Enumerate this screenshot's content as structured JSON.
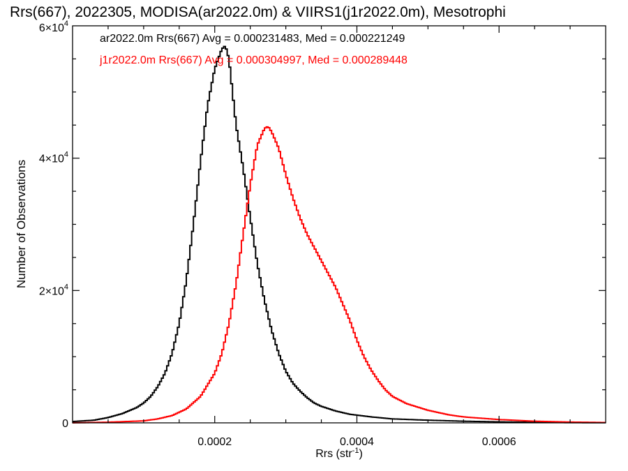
{
  "chart_data": {
    "type": "line",
    "title": "Rrs(667), 2022305, MODISA(ar2022.0m) & VIIRS1(j1r2022.0m), Mesotrophi",
    "xlabel_main": "Rrs (str",
    "xlabel_sup": "-1",
    "xlabel_tail": ")",
    "ylabel": "Number of Observations",
    "xlim": [
      0.0,
      0.00075
    ],
    "ylim": [
      0,
      60000
    ],
    "x_ticks": [
      {
        "value": 0.0002,
        "label": "0.0002"
      },
      {
        "value": 0.0004,
        "label": "0.0004"
      },
      {
        "value": 0.0006,
        "label": "0.0006"
      }
    ],
    "y_ticks": [
      {
        "value": 0,
        "base": "0",
        "exp": ""
      },
      {
        "value": 20000,
        "base": "2×10",
        "exp": "4"
      },
      {
        "value": 40000,
        "base": "4×10",
        "exp": "4"
      },
      {
        "value": 60000,
        "base": "6×10",
        "exp": "4"
      }
    ],
    "annotations": [
      "ar2022.0m Rrs(667) Avg = 0.000231483, Med = 0.000221249",
      "j1r2022.0m Rrs(667) Avg = 0.000304997, Med = 0.000289448"
    ],
    "series": [
      {
        "name": "ar2022.0m",
        "color": "#000000",
        "x": [
          0.0,
          3e-05,
          5e-05,
          7e-05,
          9e-05,
          0.0001,
          0.00011,
          0.00012,
          0.00013,
          0.00014,
          0.00015,
          0.00016,
          0.00017,
          0.00018,
          0.00019,
          0.0002,
          0.00021,
          0.000215,
          0.00022,
          0.000225,
          0.00023,
          0.00024,
          0.00025,
          0.00026,
          0.00027,
          0.00028,
          0.00029,
          0.0003,
          0.00031,
          0.00032,
          0.00033,
          0.00034,
          0.00035,
          0.00037,
          0.00039,
          0.00042,
          0.00045,
          0.0005,
          0.00055,
          0.0006,
          0.00065,
          0.0007,
          0.00075
        ],
        "y": [
          200,
          400,
          800,
          1400,
          2300,
          3000,
          4000,
          5500,
          7500,
          10500,
          15000,
          21500,
          30000,
          39500,
          48000,
          53500,
          56500,
          57000,
          55000,
          50000,
          45000,
          38500,
          31000,
          24000,
          18500,
          14000,
          10500,
          7800,
          6000,
          4800,
          3800,
          3000,
          2500,
          1800,
          1300,
          900,
          600,
          400,
          250,
          150,
          80,
          40,
          20
        ]
      },
      {
        "name": "j1r2022.0m",
        "color": "#ff0000",
        "x": [
          0.0,
          5e-05,
          0.0001,
          0.00012,
          0.00014,
          0.00016,
          0.00018,
          0.0002,
          0.00021,
          0.00022,
          0.00023,
          0.00024,
          0.00025,
          0.00026,
          0.00027,
          0.000275,
          0.00028,
          0.00029,
          0.0003,
          0.00031,
          0.00032,
          0.00033,
          0.00034,
          0.00035,
          0.00036,
          0.00037,
          0.00038,
          0.00039,
          0.0004,
          0.00041,
          0.00042,
          0.00043,
          0.00044,
          0.00045,
          0.00047,
          0.0005,
          0.00053,
          0.00055,
          0.0006,
          0.00065,
          0.0007,
          0.00075
        ],
        "y": [
          0,
          100,
          300,
          600,
          1100,
          2100,
          4000,
          7500,
          10500,
          15000,
          21000,
          28500,
          36000,
          42000,
          44500,
          44800,
          44000,
          41500,
          37500,
          34000,
          31000,
          28500,
          26500,
          24500,
          22500,
          20500,
          18000,
          15500,
          12500,
          10000,
          8000,
          6400,
          5000,
          4000,
          2900,
          1900,
          1200,
          900,
          500,
          250,
          120,
          50
        ]
      }
    ]
  }
}
